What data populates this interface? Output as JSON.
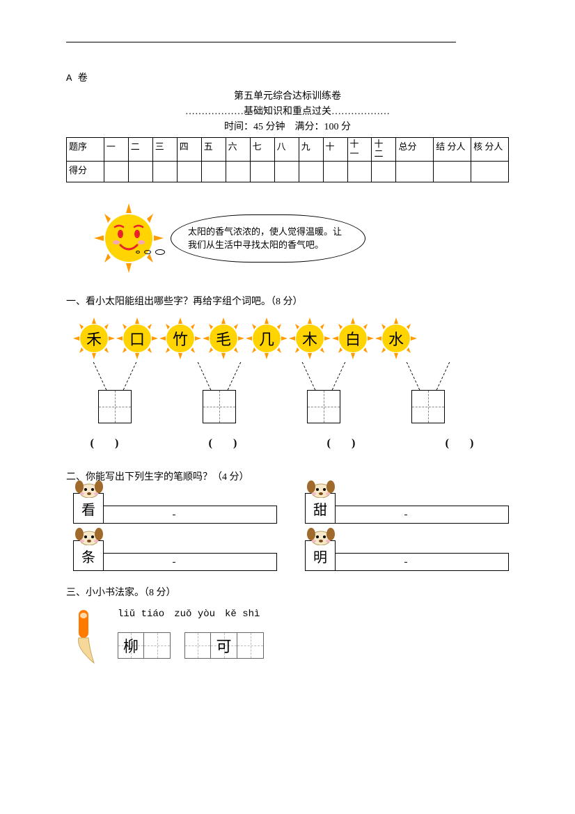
{
  "header": {
    "paper_label": "A 卷",
    "title": "第五单元综合达标训练卷",
    "subtitle": "………………基础知识和重点过关………………",
    "time_score": "时间：45 分钟　满分：100 分"
  },
  "score_table": {
    "row1": [
      "题序",
      "一",
      "二",
      "三",
      "四",
      "五",
      "六",
      "七",
      "八",
      "九",
      "十",
      "十一",
      "十二",
      "总分",
      "结 分人",
      "核 分人"
    ],
    "row2_label": "得分"
  },
  "intro_bubble": "太阳的香气浓浓的，使人觉得温暖。让我们从生活中寻找太阳的香气吧。",
  "q1": {
    "heading": "一、看小太阳能组出哪些字？再给字组个词吧。（8 分）",
    "sun_chars": [
      "禾",
      "口",
      "竹",
      "毛",
      "几",
      "木",
      "白",
      "水"
    ]
  },
  "q2": {
    "heading": "二、你能写出下列生字的笔顺吗？（4 分）",
    "chars": [
      "看",
      "甜",
      "条",
      "明"
    ]
  },
  "q3": {
    "heading": "三、小小书法家。（8 分）",
    "pinyin": [
      "liǔ tiáo",
      "zuǒ yòu",
      "kě shì"
    ],
    "cells": [
      "柳",
      "",
      "",
      "可",
      ""
    ]
  },
  "colors": {
    "sun_yellow": "#ffd400",
    "sun_orange": "#ff9a00",
    "face_red": "#e8212a",
    "cheek_pink": "#f7a6b4",
    "dog_cream": "#f6e8c8",
    "dog_brown": "#a06a2c",
    "brush_orange": "#ff7a00",
    "brush_cream": "#f5d89a"
  }
}
